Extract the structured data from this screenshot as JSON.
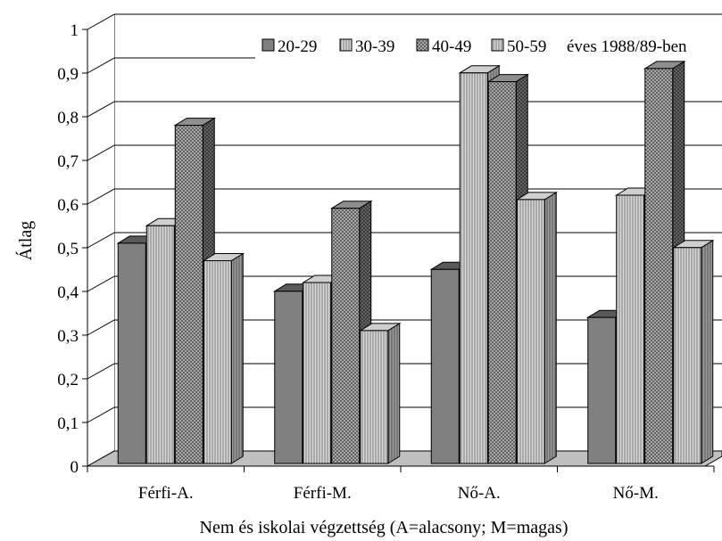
{
  "chart_data": {
    "type": "bar",
    "title": "",
    "xlabel": "Nem és iskolai végzettség (A=alacsony; M=magas)",
    "ylabel": "Átlag",
    "ylim": [
      0,
      1
    ],
    "yticks": [
      "0",
      "0,1",
      "0,2",
      "0,3",
      "0,4",
      "0,5",
      "0,6",
      "0,7",
      "0,8",
      "0,9",
      "1"
    ],
    "categories": [
      "Férfi-A.",
      "Férfi-M.",
      "Nő-A.",
      "Nő-M."
    ],
    "series": [
      {
        "name": "20-29",
        "values": [
          0.49,
          0.38,
          0.43,
          0.32
        ],
        "pattern": "solid-dark"
      },
      {
        "name": "30-39",
        "values": [
          0.53,
          0.4,
          0.88,
          0.6
        ],
        "pattern": "vertical-light"
      },
      {
        "name": "40-49",
        "values": [
          0.76,
          0.57,
          0.86,
          0.89
        ],
        "pattern": "diagonal-cross"
      },
      {
        "name": "50-59",
        "values": [
          0.45,
          0.29,
          0.59,
          0.48
        ],
        "pattern": "vertical-light"
      }
    ],
    "legend_suffix": "éves 1988/89-ben",
    "legend_position": "top",
    "grid": true,
    "chart_style": "3d-bar"
  }
}
